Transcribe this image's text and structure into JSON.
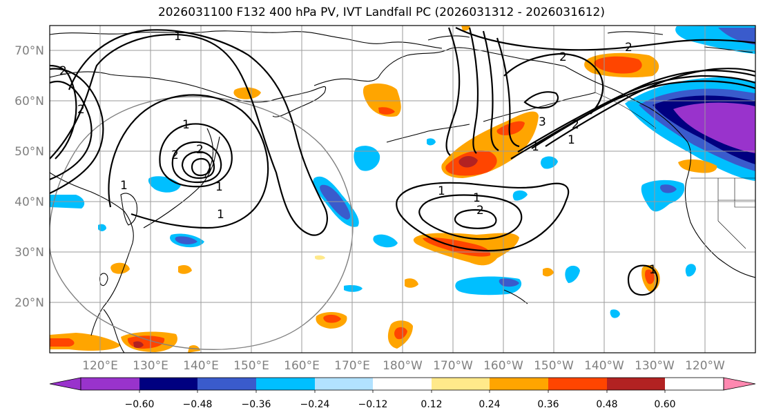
{
  "title": "2026031100 F132 400 hPa PV, IVT Landfall PC (2026031312 - 2026031612)",
  "map": {
    "lat_labels": [
      "70°N",
      "60°N",
      "50°N",
      "40°N",
      "30°N",
      "20°N"
    ],
    "lon_labels": [
      "120°E",
      "130°E",
      "140°E",
      "150°E",
      "160°E",
      "170°E",
      "180°W",
      "170°W",
      "160°W",
      "150°W",
      "140°W",
      "130°W",
      "120°W"
    ],
    "label_color": "#808080",
    "contour_labels": [
      "1",
      "2",
      "2",
      "1",
      "1",
      "2",
      "1",
      "1",
      "2",
      "3",
      "2",
      "1",
      "1",
      "2",
      "1",
      "2",
      "1",
      "1",
      "2"
    ]
  },
  "colorbar": {
    "ticks": [
      "−0.60",
      "−0.48",
      "−0.36",
      "−0.24",
      "−0.12",
      "0.12",
      "0.24",
      "0.36",
      "0.48",
      "0.60"
    ],
    "colors": [
      "#9933cc",
      "#000080",
      "#3a5bcc",
      "#00bfff",
      "#b2e2ff",
      "#ffffff",
      "#ffe98a",
      "#ffa500",
      "#ff4500",
      "#b22222",
      "#ff88b0"
    ]
  }
}
